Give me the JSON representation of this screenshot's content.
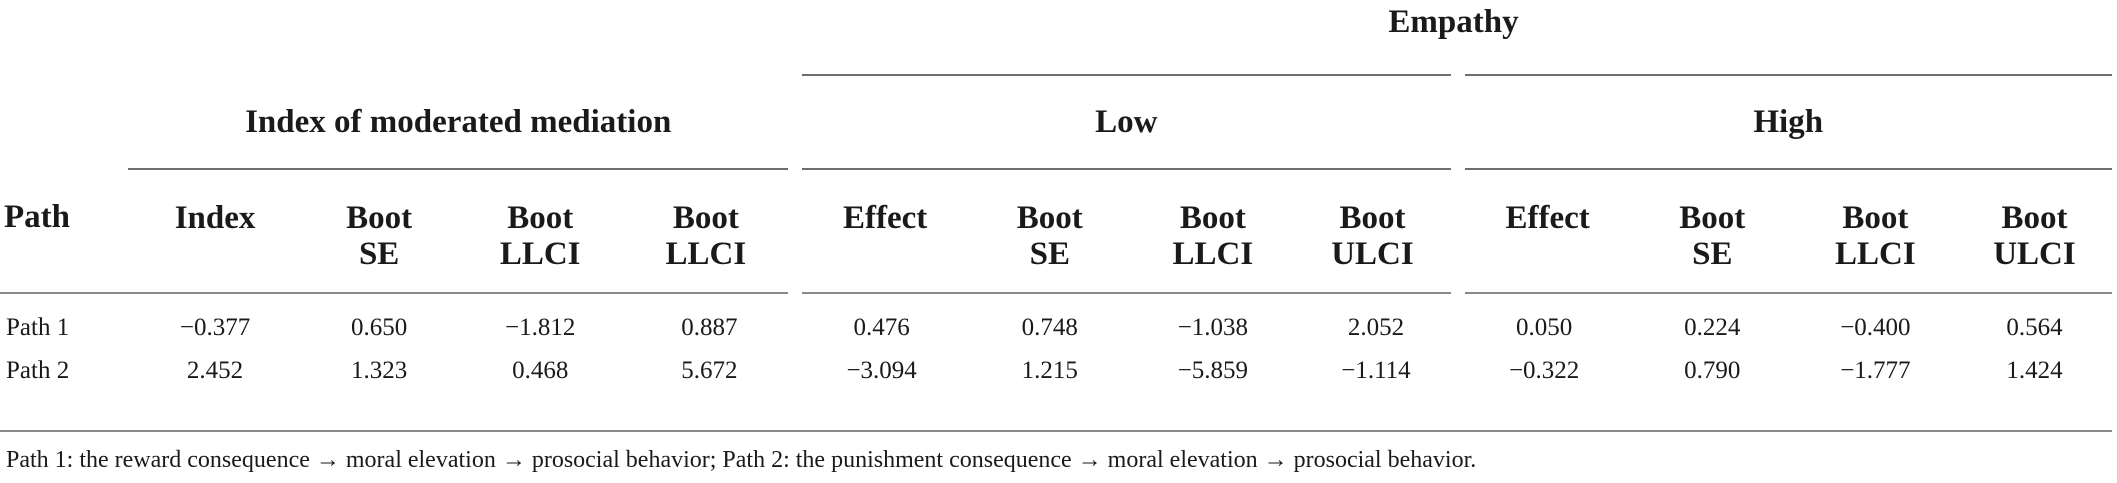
{
  "table": {
    "top_header": "Empathy",
    "groups": {
      "index": "Index of moderated mediation",
      "low": "Low",
      "high": "High"
    },
    "columns": {
      "path": "Path",
      "index": [
        "Index"
      ],
      "index_boot_se": [
        "Boot",
        "SE"
      ],
      "index_boot_llci": [
        "Boot",
        "LLCI"
      ],
      "index_boot_llci_2": [
        "Boot",
        "LLCI"
      ],
      "low_effect": [
        "Effect"
      ],
      "low_boot_se": [
        "Boot",
        "SE"
      ],
      "low_boot_llci": [
        "Boot",
        "LLCI"
      ],
      "low_boot_ulci": [
        "Boot",
        "ULCI"
      ],
      "high_effect": [
        "Effect"
      ],
      "high_boot_se": [
        "Boot",
        "SE"
      ],
      "high_boot_llci": [
        "Boot",
        "LLCI"
      ],
      "high_boot_ulci": [
        "Boot",
        "ULCI"
      ]
    },
    "rows": [
      {
        "path": "Path 1",
        "values": [
          "−0.377",
          "0.650",
          "−1.812",
          "0.887",
          "0.476",
          "0.748",
          "−1.038",
          "2.052",
          "0.050",
          "0.224",
          "−0.400",
          "0.564"
        ]
      },
      {
        "path": "Path 2",
        "values": [
          "2.452",
          "1.323",
          "0.468",
          "5.672",
          "−3.094",
          "1.215",
          "−5.859",
          "−1.114",
          "−0.322",
          "0.790",
          "−1.777",
          "1.424"
        ]
      }
    ],
    "note": "Path 1: the reward consequence → moral elevation → prosocial behavior; Path 2: the punishment consequence → moral elevation → prosocial behavior."
  }
}
